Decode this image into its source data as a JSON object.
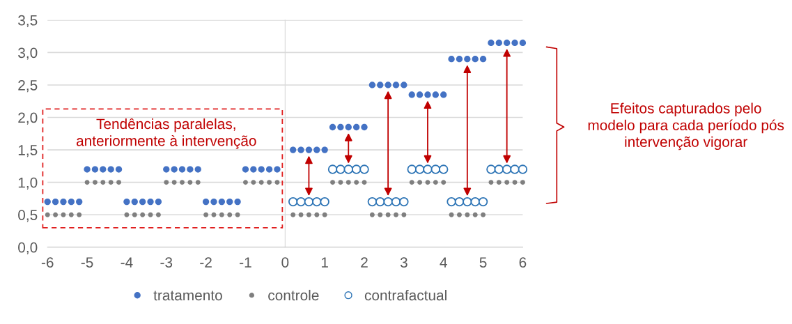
{
  "chart_data": {
    "type": "scatter",
    "x": [
      -6,
      -5.8,
      -5.6,
      -5.4,
      -5.2,
      -5,
      -4.8,
      -4.6,
      -4.4,
      -4.2,
      -4,
      -3.8,
      -3.6,
      -3.4,
      -3.2,
      -3,
      -2.8,
      -2.6,
      -2.4,
      -2.2,
      -2,
      -1.8,
      -1.6,
      -1.4,
      -1.2,
      -1,
      -0.8,
      -0.6,
      -0.4,
      -0.2,
      0.2,
      0.4,
      0.6,
      0.8,
      1,
      1.2,
      1.4,
      1.6,
      1.8,
      2,
      2.2,
      2.4,
      2.6,
      2.8,
      3,
      3.2,
      3.4,
      3.6,
      3.8,
      4,
      4.2,
      4.4,
      4.6,
      4.8,
      5,
      5.2,
      5.4,
      5.6,
      5.8,
      6
    ],
    "series": [
      {
        "name": "tratamento",
        "color": "#4472c4",
        "marker": "circle",
        "values": [
          0.7,
          0.7,
          0.7,
          0.7,
          0.7,
          1.2,
          1.2,
          1.2,
          1.2,
          1.2,
          0.7,
          0.7,
          0.7,
          0.7,
          0.7,
          1.2,
          1.2,
          1.2,
          1.2,
          1.2,
          0.7,
          0.7,
          0.7,
          0.7,
          0.7,
          1.2,
          1.2,
          1.2,
          1.2,
          1.2,
          1.5,
          1.5,
          1.5,
          1.5,
          1.5,
          1.85,
          1.85,
          1.85,
          1.85,
          1.85,
          2.5,
          2.5,
          2.5,
          2.5,
          2.5,
          2.35,
          2.35,
          2.35,
          2.35,
          2.35,
          2.9,
          2.9,
          2.9,
          2.9,
          2.9,
          3.15,
          3.15,
          3.15,
          3.15,
          3.15
        ]
      },
      {
        "name": "controle",
        "color": "#7f7f7f",
        "marker": "circle",
        "values": [
          0.5,
          0.5,
          0.5,
          0.5,
          0.5,
          1.0,
          1.0,
          1.0,
          1.0,
          1.0,
          0.5,
          0.5,
          0.5,
          0.5,
          0.5,
          1.0,
          1.0,
          1.0,
          1.0,
          1.0,
          0.5,
          0.5,
          0.5,
          0.5,
          0.5,
          1.0,
          1.0,
          1.0,
          1.0,
          1.0,
          0.5,
          0.5,
          0.5,
          0.5,
          0.5,
          1.0,
          1.0,
          1.0,
          1.0,
          1.0,
          0.5,
          0.5,
          0.5,
          0.5,
          0.5,
          1.0,
          1.0,
          1.0,
          1.0,
          1.0,
          0.5,
          0.5,
          0.5,
          0.5,
          0.5,
          1.0,
          1.0,
          1.0,
          1.0,
          1.0
        ]
      },
      {
        "name": "contrafactual",
        "color": "#2e75b6",
        "marker": "circle-open",
        "values": [
          null,
          null,
          null,
          null,
          null,
          null,
          null,
          null,
          null,
          null,
          null,
          null,
          null,
          null,
          null,
          null,
          null,
          null,
          null,
          null,
          null,
          null,
          null,
          null,
          null,
          null,
          null,
          null,
          null,
          null,
          0.7,
          0.7,
          0.7,
          0.7,
          0.7,
          1.2,
          1.2,
          1.2,
          1.2,
          1.2,
          0.7,
          0.7,
          0.7,
          0.7,
          0.7,
          1.2,
          1.2,
          1.2,
          1.2,
          1.2,
          0.7,
          0.7,
          0.7,
          0.7,
          0.7,
          1.2,
          1.2,
          1.2,
          1.2,
          1.2
        ]
      }
    ],
    "xlim": [
      -6,
      6
    ],
    "xticks": [
      -6,
      -5,
      -4,
      -3,
      -2,
      -1,
      0,
      1,
      2,
      3,
      4,
      5,
      6
    ],
    "ylim": [
      0,
      3.5
    ],
    "yticks": [
      {
        "value": 0,
        "label": "0,0"
      },
      {
        "value": 0.5,
        "label": "0,5"
      },
      {
        "value": 1.0,
        "label": "1,0"
      },
      {
        "value": 1.5,
        "label": "1,5"
      },
      {
        "value": 2.0,
        "label": "2,0"
      },
      {
        "value": 2.5,
        "label": "2,5"
      },
      {
        "value": 3.0,
        "label": "3,0"
      },
      {
        "value": 3.5,
        "label": "3,5"
      }
    ],
    "grid": "y",
    "legend": "bottom",
    "annotations": [
      "Tendências paralelas,\nanteriormente à intervenção",
      "Efeitos capturados pelo\nmodelo para cada período pós\nintervenção vigorar"
    ]
  }
}
